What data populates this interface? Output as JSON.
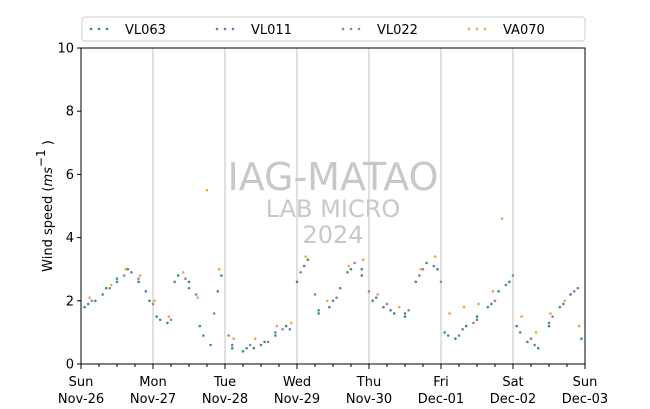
{
  "chart_data": {
    "type": "scatter",
    "ylabel": "Wind speed (ms⁻¹ )",
    "ylabel_parts": {
      "prefix": "Wind speed (",
      "unit": "ms",
      "exponent": "−1",
      "suffix": " )"
    },
    "ylim": [
      0,
      10
    ],
    "yticks": [
      0,
      2,
      4,
      6,
      8,
      10
    ],
    "xlim_days": [
      0,
      7
    ],
    "x_ticks": [
      {
        "day": 0,
        "weekday": "Sun",
        "date": "Nov-26"
      },
      {
        "day": 1,
        "weekday": "Mon",
        "date": "Nov-27"
      },
      {
        "day": 2,
        "weekday": "Tue",
        "date": "Nov-28"
      },
      {
        "day": 3,
        "weekday": "Wed",
        "date": "Nov-29"
      },
      {
        "day": 4,
        "weekday": "Thu",
        "date": "Nov-30"
      },
      {
        "day": 5,
        "weekday": "Fri",
        "date": "Dec-01"
      },
      {
        "day": 6,
        "weekday": "Sat",
        "date": "Dec-02"
      },
      {
        "day": 7,
        "weekday": "Sun",
        "date": "Dec-03"
      }
    ],
    "grid": "vertical at day boundaries",
    "legend_position": "top",
    "series": [
      {
        "name": "VL063",
        "color": "#2e9e5b",
        "points": [
          [
            0.05,
            1.8
          ],
          [
            0.2,
            2.0
          ],
          [
            0.35,
            2.4
          ],
          [
            0.5,
            2.6
          ],
          [
            0.65,
            3.0
          ],
          [
            0.8,
            2.6
          ],
          [
            0.95,
            2.0
          ],
          [
            1.05,
            1.5
          ],
          [
            1.2,
            1.3
          ],
          [
            1.35,
            2.8
          ],
          [
            1.5,
            2.6
          ],
          [
            1.65,
            1.2
          ],
          [
            1.8,
            0.6
          ],
          [
            1.95,
            2.8
          ],
          [
            2.1,
            0.5
          ],
          [
            2.25,
            0.4
          ],
          [
            2.4,
            0.5
          ],
          [
            2.55,
            0.7
          ],
          [
            2.7,
            0.9
          ],
          [
            2.85,
            1.2
          ],
          [
            3.0,
            2.6
          ],
          [
            3.15,
            3.3
          ],
          [
            3.3,
            1.6
          ],
          [
            3.45,
            1.8
          ],
          [
            3.6,
            2.4
          ],
          [
            3.75,
            3.0
          ],
          [
            3.9,
            2.8
          ],
          [
            4.05,
            2.0
          ],
          [
            4.2,
            1.8
          ],
          [
            4.35,
            1.6
          ],
          [
            4.5,
            1.5
          ],
          [
            4.65,
            2.6
          ],
          [
            4.8,
            3.2
          ],
          [
            4.95,
            3.0
          ],
          [
            5.05,
            1.0
          ],
          [
            5.2,
            0.8
          ],
          [
            5.35,
            1.2
          ],
          [
            5.5,
            1.5
          ],
          [
            5.65,
            1.8
          ],
          [
            5.8,
            2.3
          ],
          [
            5.95,
            2.6
          ],
          [
            6.05,
            1.2
          ],
          [
            6.2,
            0.7
          ],
          [
            6.35,
            0.5
          ],
          [
            6.5,
            1.2
          ],
          [
            6.65,
            1.8
          ],
          [
            6.8,
            2.2
          ],
          [
            6.95,
            0.8
          ]
        ]
      },
      {
        "name": "VL011",
        "color": "#5a7fb5",
        "points": [
          [
            0.1,
            1.9
          ],
          [
            0.3,
            2.2
          ],
          [
            0.5,
            2.7
          ],
          [
            0.7,
            2.9
          ],
          [
            0.9,
            2.3
          ],
          [
            1.1,
            1.4
          ],
          [
            1.3,
            2.6
          ],
          [
            1.5,
            2.4
          ],
          [
            1.7,
            0.9
          ],
          [
            1.9,
            2.3
          ],
          [
            2.1,
            0.6
          ],
          [
            2.3,
            0.5
          ],
          [
            2.5,
            0.6
          ],
          [
            2.7,
            1.0
          ],
          [
            2.9,
            1.1
          ],
          [
            3.1,
            3.1
          ],
          [
            3.3,
            1.7
          ],
          [
            3.5,
            2.0
          ],
          [
            3.7,
            2.9
          ],
          [
            3.9,
            3.0
          ],
          [
            4.1,
            2.1
          ],
          [
            4.3,
            1.7
          ],
          [
            4.5,
            1.6
          ],
          [
            4.7,
            2.8
          ],
          [
            4.9,
            3.1
          ],
          [
            5.1,
            0.9
          ],
          [
            5.3,
            1.1
          ],
          [
            5.5,
            1.4
          ],
          [
            5.7,
            1.9
          ],
          [
            5.9,
            2.5
          ],
          [
            6.1,
            1.0
          ],
          [
            6.3,
            0.6
          ],
          [
            6.5,
            1.3
          ],
          [
            6.7,
            1.9
          ],
          [
            6.9,
            2.4
          ]
        ]
      },
      {
        "name": "VL022",
        "color": "#a078b0",
        "points": [
          [
            0.15,
            2.0
          ],
          [
            0.4,
            2.4
          ],
          [
            0.6,
            2.8
          ],
          [
            0.8,
            2.7
          ],
          [
            1.0,
            1.9
          ],
          [
            1.25,
            1.4
          ],
          [
            1.45,
            2.7
          ],
          [
            1.6,
            2.2
          ],
          [
            1.85,
            1.6
          ],
          [
            2.05,
            0.9
          ],
          [
            2.35,
            0.6
          ],
          [
            2.6,
            0.7
          ],
          [
            2.8,
            1.1
          ],
          [
            3.05,
            2.9
          ],
          [
            3.25,
            2.2
          ],
          [
            3.55,
            2.1
          ],
          [
            3.8,
            3.2
          ],
          [
            4.0,
            2.3
          ],
          [
            4.25,
            1.9
          ],
          [
            4.55,
            1.7
          ],
          [
            4.75,
            3.0
          ],
          [
            5.0,
            2.6
          ],
          [
            5.25,
            0.9
          ],
          [
            5.45,
            1.3
          ],
          [
            5.75,
            2.0
          ],
          [
            6.0,
            2.8
          ],
          [
            6.25,
            0.8
          ],
          [
            6.55,
            1.5
          ],
          [
            6.85,
            2.3
          ]
        ]
      },
      {
        "name": "VA070",
        "color": "#f5a33a",
        "points": [
          [
            0.12,
            2.1
          ],
          [
            0.42,
            2.5
          ],
          [
            0.62,
            3.0
          ],
          [
            0.82,
            2.8
          ],
          [
            1.02,
            2.0
          ],
          [
            1.22,
            1.5
          ],
          [
            1.42,
            2.9
          ],
          [
            1.62,
            2.1
          ],
          [
            1.75,
            5.5
          ],
          [
            1.92,
            3.0
          ],
          [
            2.12,
            0.8
          ],
          [
            2.42,
            0.8
          ],
          [
            2.72,
            1.2
          ],
          [
            2.92,
            1.3
          ],
          [
            3.12,
            3.4
          ],
          [
            3.42,
            2.0
          ],
          [
            3.72,
            3.1
          ],
          [
            3.92,
            3.3
          ],
          [
            4.12,
            2.2
          ],
          [
            4.42,
            1.8
          ],
          [
            4.72,
            3.0
          ],
          [
            4.92,
            3.4
          ],
          [
            5.12,
            1.6
          ],
          [
            5.32,
            1.8
          ],
          [
            5.52,
            1.9
          ],
          [
            5.72,
            2.3
          ],
          [
            5.85,
            4.6
          ],
          [
            6.12,
            1.5
          ],
          [
            6.32,
            1.0
          ],
          [
            6.52,
            1.6
          ],
          [
            6.72,
            2.0
          ],
          [
            6.92,
            1.2
          ]
        ]
      }
    ]
  },
  "watermark": {
    "line1": "IAG-MATAO",
    "line2": "LAB MICRO",
    "line3": "2024"
  }
}
